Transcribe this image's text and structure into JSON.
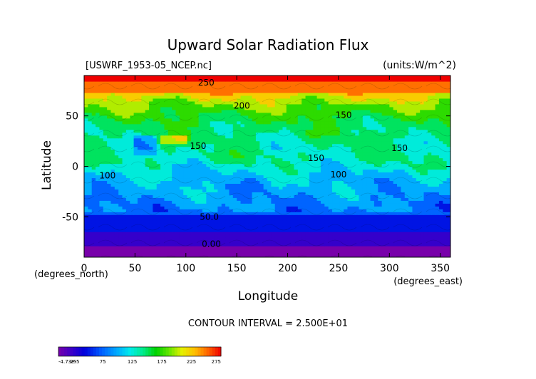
{
  "chart_data": {
    "type": "heatmap",
    "title": "Upward Solar Radiation Flux",
    "file_label": "[USWRF_1953-05_NCEP.nc]",
    "units_label": "(units:W/m^2)",
    "xlabel": "Longitude",
    "ylabel": "Latitude",
    "x_unit_label": "(degrees_east)",
    "y_unit_label": "(degrees_north)",
    "xlim": [
      0,
      360
    ],
    "ylim": [
      -90,
      90
    ],
    "x_ticks": [
      0,
      50,
      100,
      150,
      200,
      250,
      300,
      350
    ],
    "y_ticks": [
      -50,
      0,
      50
    ],
    "contour_interval_text": "CONTOUR INTERVAL = 2.500E+01",
    "contour_labels": [
      {
        "text": "250",
        "lon": 120,
        "lat": 83
      },
      {
        "text": "200",
        "lon": 155,
        "lat": 60
      },
      {
        "text": "150",
        "lon": 255,
        "lat": 51
      },
      {
        "text": "150",
        "lon": 112,
        "lat": 20
      },
      {
        "text": "150",
        "lon": 310,
        "lat": 18
      },
      {
        "text": "150",
        "lon": 228,
        "lat": 8
      },
      {
        "text": "100",
        "lon": 23,
        "lat": -9
      },
      {
        "text": "100",
        "lon": 250,
        "lat": -8
      },
      {
        "text": "50.0",
        "lon": 123,
        "lat": -50
      },
      {
        "text": "0.00",
        "lon": 125,
        "lat": -77
      }
    ],
    "colorbar": {
      "min": -4.73e-05,
      "max": 275,
      "tick_labels": [
        "-4.73e-5",
        "25",
        "75",
        "125",
        "175",
        "225",
        "275"
      ],
      "tick_values": [
        -4.73e-05,
        25,
        75,
        125,
        175,
        225,
        275
      ]
    },
    "zonal_profile": [
      {
        "lat": -90,
        "value": 5
      },
      {
        "lat": -80,
        "value": 10
      },
      {
        "lat": -75,
        "value": 30
      },
      {
        "lat": -60,
        "value": 40
      },
      {
        "lat": -52,
        "value": 48
      },
      {
        "lat": -45,
        "value": 80
      },
      {
        "lat": -30,
        "value": 95
      },
      {
        "lat": -10,
        "value": 108
      },
      {
        "lat": 0,
        "value": 125
      },
      {
        "lat": 10,
        "value": 138
      },
      {
        "lat": 20,
        "value": 135
      },
      {
        "lat": 30,
        "value": 145
      },
      {
        "lat": 40,
        "value": 150
      },
      {
        "lat": 50,
        "value": 165
      },
      {
        "lat": 60,
        "value": 185
      },
      {
        "lat": 70,
        "value": 215
      },
      {
        "lat": 78,
        "value": 255
      },
      {
        "lat": 90,
        "value": 262
      }
    ]
  }
}
